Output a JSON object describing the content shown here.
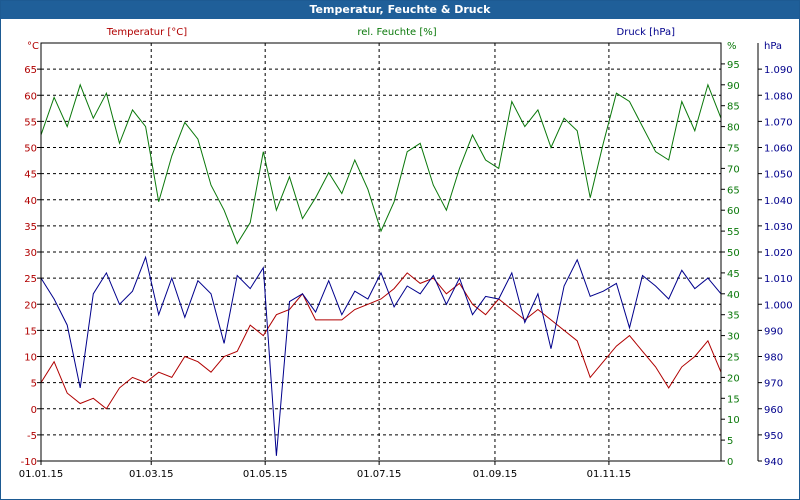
{
  "window": {
    "title": "Temperatur, Feuchte & Druck"
  },
  "colors": {
    "temperature": "#b00000",
    "humidity": "#0a780a",
    "pressure": "#00008c",
    "title_bg": "#1f5f99",
    "grid": "#000000"
  },
  "chart_data": {
    "type": "line",
    "title": "Temperatur, Feuchte & Druck",
    "grid": true,
    "x_ticks": [
      "01.01.15",
      "01.03.15",
      "01.05.15",
      "01.07.15",
      "01.09.15",
      "01.11.15"
    ],
    "x_tick_dates": [
      "2015-01-01",
      "2015-03-01",
      "2015-05-01",
      "2015-07-01",
      "2015-09-01",
      "2015-11-01"
    ],
    "x_range": [
      "2015-01-01",
      "2015-12-31"
    ],
    "axes": {
      "temperature": {
        "unit_label": "°C",
        "range": [
          -10,
          70
        ],
        "ticks": [
          "-10",
          "-5",
          "0",
          "5",
          "10",
          "15",
          "20",
          "25",
          "30",
          "35",
          "40",
          "45",
          "50",
          "55",
          "60",
          "65"
        ]
      },
      "humidity": {
        "unit_label": "%",
        "range": [
          0,
          100
        ],
        "ticks": [
          "0",
          "5",
          "10",
          "15",
          "20",
          "25",
          "30",
          "35",
          "40",
          "45",
          "50",
          "55",
          "60",
          "65",
          "70",
          "75",
          "80",
          "85",
          "90",
          "95"
        ]
      },
      "pressure": {
        "unit_label": "hPa",
        "range": [
          940,
          1100
        ],
        "ticks": [
          "940",
          "950",
          "960",
          "970",
          "980",
          "990",
          "1.000",
          "1.010",
          "1.020",
          "1.030",
          "1.040",
          "1.050",
          "1.060",
          "1.070",
          "1.080",
          "1.090"
        ]
      }
    },
    "series": [
      {
        "name": "Temperatur [°C]",
        "axis": "temperature",
        "color": "#b00000",
        "x": [
          "2015-01-01",
          "2015-01-08",
          "2015-01-15",
          "2015-01-22",
          "2015-01-29",
          "2015-02-05",
          "2015-02-12",
          "2015-02-19",
          "2015-02-26",
          "2015-03-05",
          "2015-03-12",
          "2015-03-19",
          "2015-03-26",
          "2015-04-02",
          "2015-04-09",
          "2015-04-16",
          "2015-04-23",
          "2015-04-30",
          "2015-05-07",
          "2015-05-14",
          "2015-05-21",
          "2015-05-28",
          "2015-06-04",
          "2015-06-11",
          "2015-06-18",
          "2015-06-25",
          "2015-07-02",
          "2015-07-09",
          "2015-07-16",
          "2015-07-23",
          "2015-07-30",
          "2015-08-06",
          "2015-08-13",
          "2015-08-20",
          "2015-08-27",
          "2015-09-03",
          "2015-09-10",
          "2015-09-17",
          "2015-09-24",
          "2015-10-01",
          "2015-10-08",
          "2015-10-15",
          "2015-10-22",
          "2015-10-29",
          "2015-11-05",
          "2015-11-12",
          "2015-11-19",
          "2015-11-26",
          "2015-12-03",
          "2015-12-10",
          "2015-12-17",
          "2015-12-24",
          "2015-12-31"
        ],
        "values": [
          5,
          9,
          3,
          1,
          2,
          0,
          4,
          6,
          5,
          7,
          6,
          10,
          9,
          7,
          10,
          11,
          16,
          14,
          18,
          19,
          22,
          17,
          17,
          17,
          19,
          20,
          21,
          23,
          26,
          24,
          25,
          22,
          24,
          20,
          18,
          21,
          19,
          17,
          19,
          17,
          15,
          13,
          6,
          9,
          12,
          14,
          11,
          8,
          4,
          8,
          10,
          13,
          7
        ]
      },
      {
        "name": "rel. Feuchte [%]",
        "axis": "humidity",
        "color": "#0a780a",
        "x": [
          "2015-01-01",
          "2015-01-08",
          "2015-01-15",
          "2015-01-22",
          "2015-01-29",
          "2015-02-05",
          "2015-02-12",
          "2015-02-19",
          "2015-02-26",
          "2015-03-05",
          "2015-03-12",
          "2015-03-19",
          "2015-03-26",
          "2015-04-02",
          "2015-04-09",
          "2015-04-16",
          "2015-04-23",
          "2015-04-30",
          "2015-05-07",
          "2015-05-14",
          "2015-05-21",
          "2015-05-28",
          "2015-06-04",
          "2015-06-11",
          "2015-06-18",
          "2015-06-25",
          "2015-07-02",
          "2015-07-09",
          "2015-07-16",
          "2015-07-23",
          "2015-07-30",
          "2015-08-06",
          "2015-08-13",
          "2015-08-20",
          "2015-08-27",
          "2015-09-03",
          "2015-09-10",
          "2015-09-17",
          "2015-09-24",
          "2015-10-01",
          "2015-10-08",
          "2015-10-15",
          "2015-10-22",
          "2015-10-29",
          "2015-11-05",
          "2015-11-12",
          "2015-11-19",
          "2015-11-26",
          "2015-12-03",
          "2015-12-10",
          "2015-12-17",
          "2015-12-24",
          "2015-12-31"
        ],
        "values": [
          78,
          87,
          80,
          90,
          82,
          88,
          76,
          84,
          80,
          62,
          73,
          81,
          77,
          66,
          60,
          52,
          57,
          74,
          60,
          68,
          58,
          63,
          69,
          64,
          72,
          65,
          55,
          62,
          74,
          76,
          66,
          60,
          70,
          78,
          72,
          70,
          86,
          80,
          84,
          75,
          82,
          79,
          63,
          76,
          88,
          86,
          80,
          74,
          72,
          86,
          79,
          90,
          82
        ]
      },
      {
        "name": "Druck [hPa]",
        "axis": "pressure",
        "color": "#00008c",
        "x": [
          "2015-01-01",
          "2015-01-08",
          "2015-01-15",
          "2015-01-22",
          "2015-01-29",
          "2015-02-05",
          "2015-02-12",
          "2015-02-19",
          "2015-02-26",
          "2015-03-05",
          "2015-03-12",
          "2015-03-19",
          "2015-03-26",
          "2015-04-02",
          "2015-04-09",
          "2015-04-16",
          "2015-04-23",
          "2015-04-30",
          "2015-05-07",
          "2015-05-14",
          "2015-05-21",
          "2015-05-28",
          "2015-06-04",
          "2015-06-11",
          "2015-06-18",
          "2015-06-25",
          "2015-07-02",
          "2015-07-09",
          "2015-07-16",
          "2015-07-23",
          "2015-07-30",
          "2015-08-06",
          "2015-08-13",
          "2015-08-20",
          "2015-08-27",
          "2015-09-03",
          "2015-09-10",
          "2015-09-17",
          "2015-09-24",
          "2015-10-01",
          "2015-10-08",
          "2015-10-15",
          "2015-10-22",
          "2015-10-29",
          "2015-11-05",
          "2015-11-12",
          "2015-11-19",
          "2015-11-26",
          "2015-12-03",
          "2015-12-10",
          "2015-12-17",
          "2015-12-24",
          "2015-12-31"
        ],
        "values": [
          1010,
          1002,
          992,
          968,
          1004,
          1012,
          1000,
          1005,
          1018,
          996,
          1010,
          995,
          1009,
          1004,
          985,
          1011,
          1006,
          1014,
          942,
          1001,
          1004,
          997,
          1009,
          996,
          1005,
          1002,
          1012,
          999,
          1007,
          1004,
          1011,
          1000,
          1010,
          996,
          1003,
          1002,
          1012,
          993,
          1004,
          983,
          1007,
          1017,
          1003,
          1005,
          1008,
          991,
          1011,
          1007,
          1002,
          1013,
          1006,
          1010,
          1004
        ]
      }
    ]
  }
}
